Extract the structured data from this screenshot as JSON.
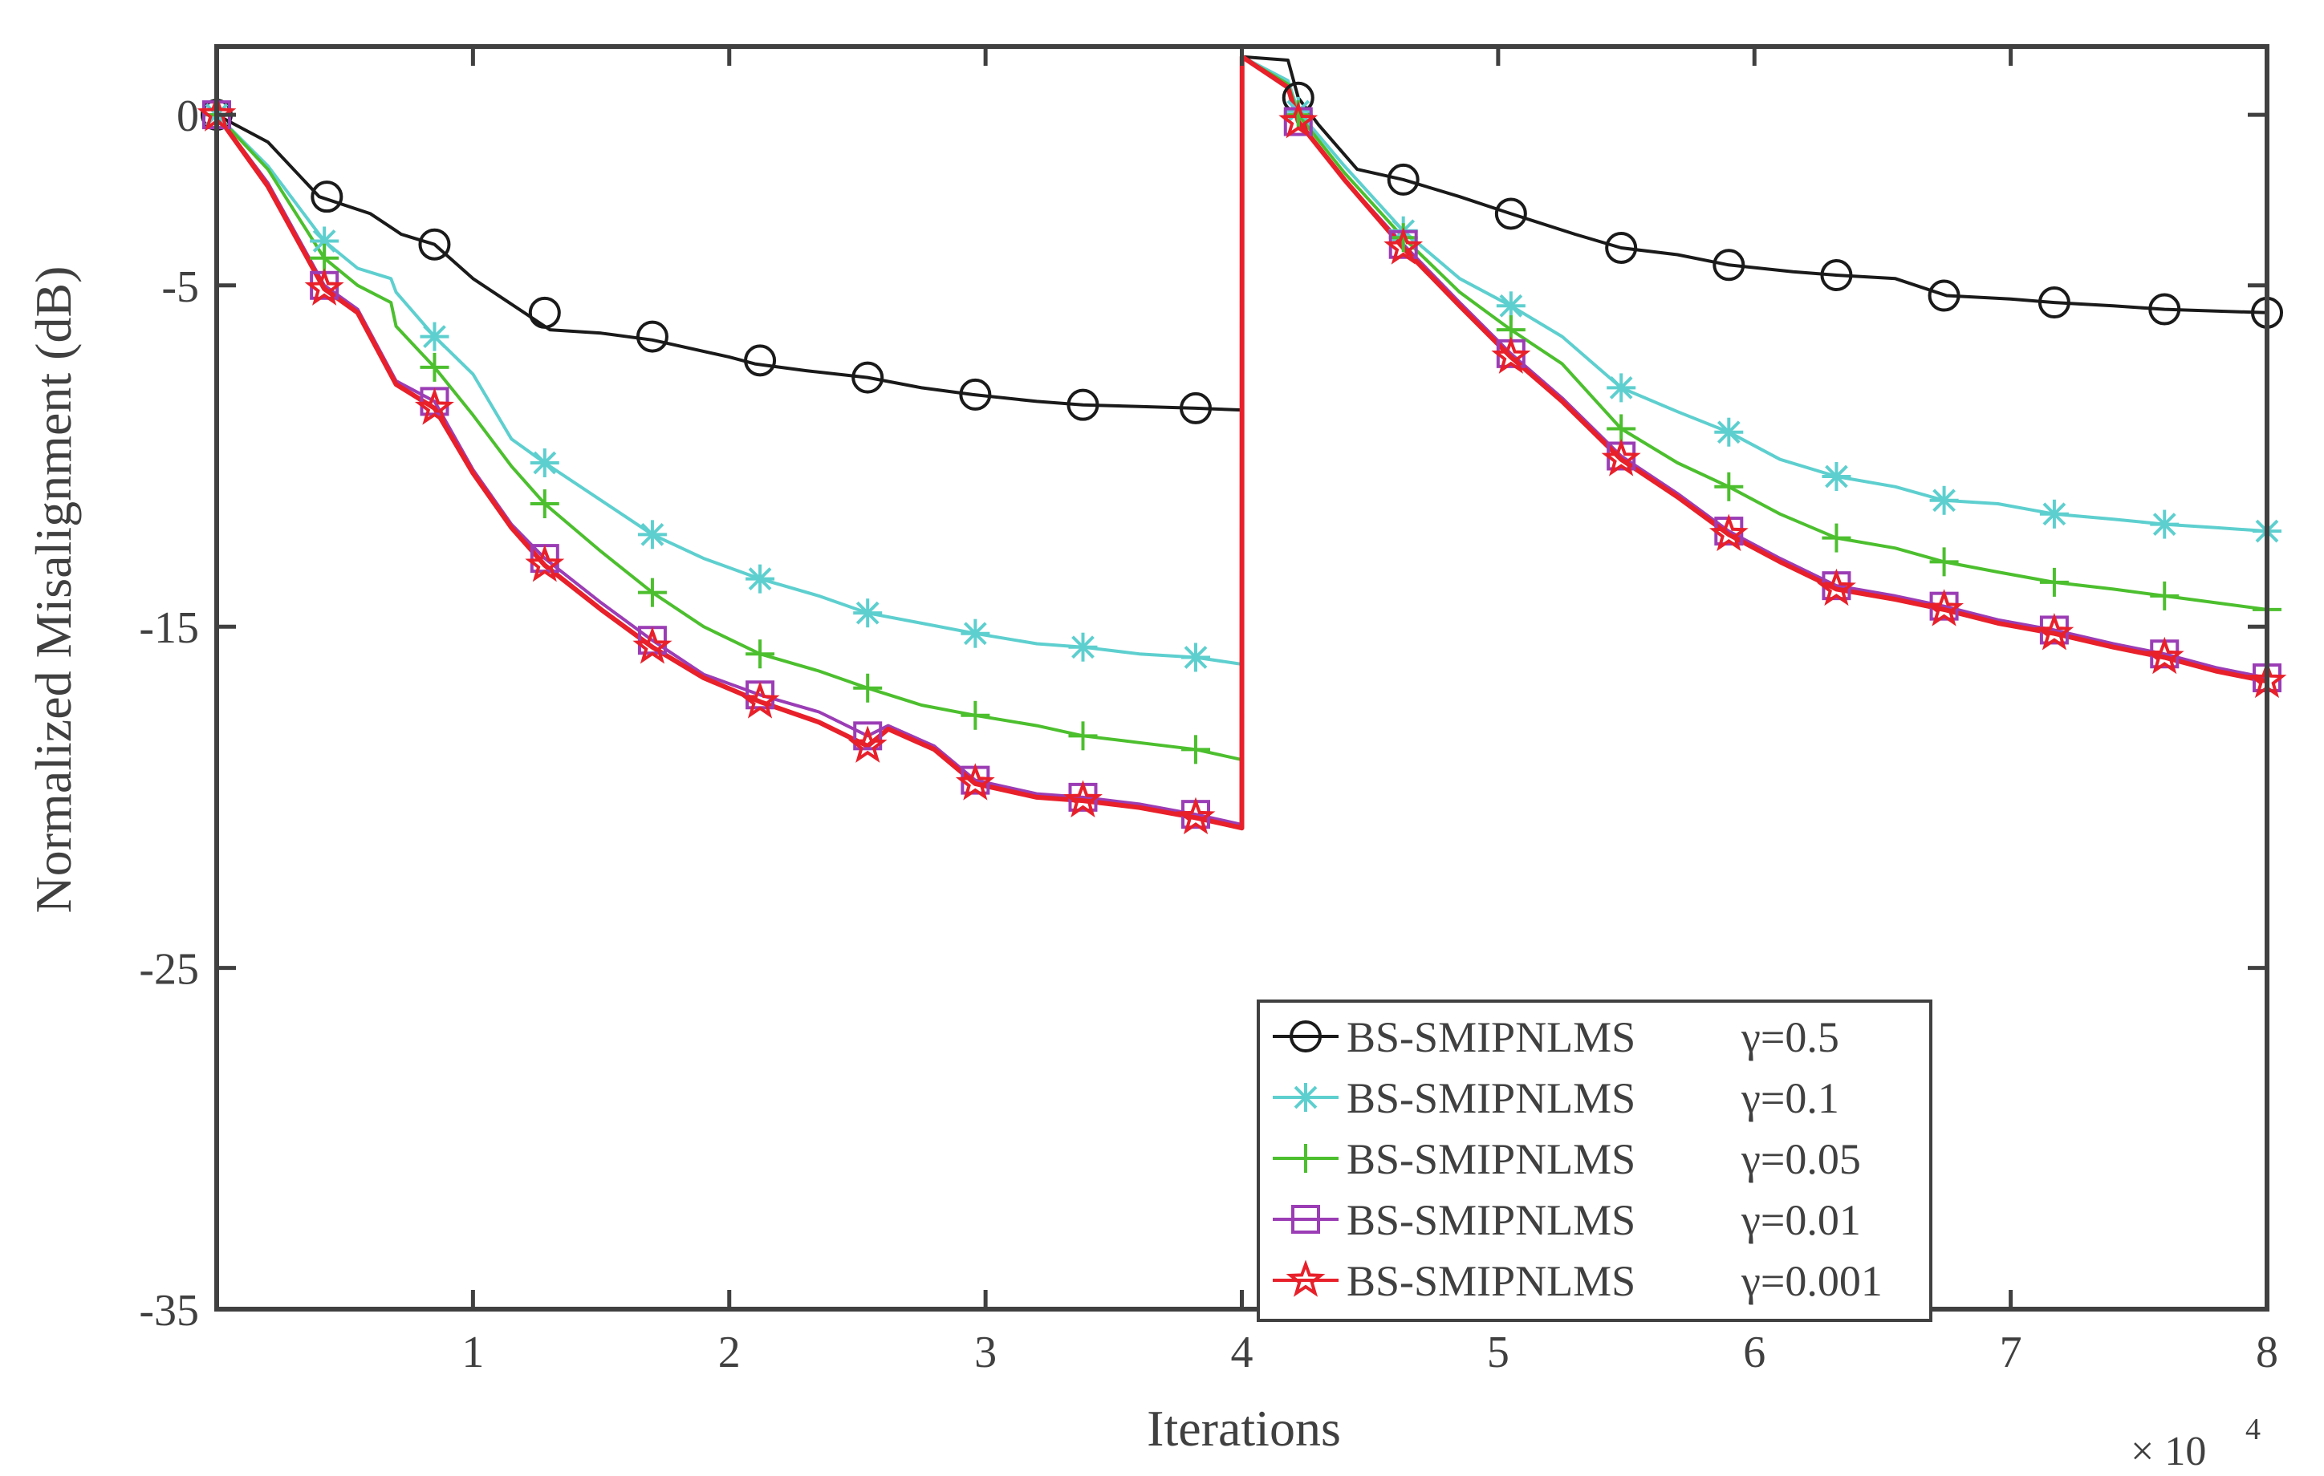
{
  "chart_data": {
    "type": "line",
    "title": "",
    "xlabel": "Iterations",
    "ylabel": "Normalized Misalignment (dB)",
    "x_multiplier": "× 10",
    "x_multiplier_exponent": "4",
    "xlim": [
      0,
      8
    ],
    "ylim": [
      -35,
      2
    ],
    "xticks": [
      1,
      2,
      3,
      4,
      5,
      6,
      7,
      8
    ],
    "xtick_labels": [
      "1",
      "2",
      "3",
      "4",
      "5",
      "6",
      "7",
      "8"
    ],
    "yticks": [
      0,
      -5,
      -15,
      -25,
      -35
    ],
    "ytick_labels": [
      "0",
      "-5",
      "-15",
      "-25",
      "-35"
    ],
    "legend_position": "bottom-right",
    "series": [
      {
        "name": "BS-SMIPNLMS",
        "param": "γ=0.5",
        "color": "#1a1a1a",
        "marker": "circle",
        "x": [
          0,
          0.2,
          0.4,
          0.6,
          0.7,
          0.72,
          0.85,
          1.0,
          1.2,
          1.3,
          1.5,
          1.7,
          2.0,
          2.1,
          2.3,
          2.54,
          2.75,
          2.95,
          3.2,
          3.38,
          3.6,
          3.82,
          4.0,
          4.001,
          4.18,
          4.22,
          4.3,
          4.45,
          4.63,
          4.85,
          5.05,
          5.3,
          5.48,
          5.7,
          5.9,
          6.15,
          6.32,
          6.55,
          6.75,
          7.0,
          7.17,
          7.4,
          7.6,
          7.8,
          8.0
        ],
        "y": [
          0,
          -0.8,
          -2.4,
          -2.9,
          -3.4,
          -3.5,
          -3.8,
          -4.8,
          -5.8,
          -6.3,
          -6.4,
          -6.6,
          -7.1,
          -7.3,
          -7.5,
          -7.7,
          -8.0,
          -8.2,
          -8.4,
          -8.5,
          -8.55,
          -8.6,
          -8.65,
          1.7,
          1.6,
          0.5,
          -0.3,
          -1.6,
          -1.9,
          -2.4,
          -2.9,
          -3.5,
          -3.9,
          -4.1,
          -4.4,
          -4.6,
          -4.7,
          -4.8,
          -5.3,
          -5.4,
          -5.5,
          -5.6,
          -5.7,
          -5.75,
          -5.8
        ],
        "marker_x": [
          0,
          0.43,
          0.85,
          1.28,
          1.7,
          2.12,
          2.54,
          2.96,
          3.38,
          3.82,
          4.22,
          4.63,
          5.05,
          5.48,
          5.9,
          6.32,
          6.74,
          7.17,
          7.6,
          8.0
        ],
        "marker_y": [
          0,
          -2.4,
          -3.8,
          -5.8,
          -6.5,
          -7.2,
          -7.7,
          -8.2,
          -8.5,
          -8.6,
          0.5,
          -1.9,
          -2.9,
          -3.9,
          -4.4,
          -4.7,
          -5.3,
          -5.5,
          -5.7,
          -5.8
        ]
      },
      {
        "name": "BS-SMIPNLMS",
        "param": "γ=0.1",
        "color": "#5ecfcf",
        "marker": "asterisk",
        "x": [
          0,
          0.2,
          0.42,
          0.55,
          0.68,
          0.7,
          0.85,
          1.0,
          1.15,
          1.28,
          1.5,
          1.7,
          1.9,
          2.12,
          2.35,
          2.54,
          2.75,
          2.96,
          3.2,
          3.38,
          3.6,
          3.82,
          4.0,
          4.001,
          4.18,
          4.22,
          4.4,
          4.63,
          4.85,
          5.05,
          5.25,
          5.48,
          5.7,
          5.9,
          6.1,
          6.32,
          6.55,
          6.74,
          6.95,
          7.17,
          7.4,
          7.6,
          7.8,
          8.0
        ],
        "y": [
          0,
          -1.5,
          -3.7,
          -4.5,
          -4.8,
          -5.2,
          -6.5,
          -7.6,
          -9.5,
          -10.2,
          -11.3,
          -12.3,
          -13.0,
          -13.6,
          -14.1,
          -14.6,
          -14.9,
          -15.2,
          -15.5,
          -15.6,
          -15.8,
          -15.9,
          -16.1,
          1.7,
          1.0,
          0.1,
          -1.5,
          -3.4,
          -4.8,
          -5.6,
          -6.5,
          -8.0,
          -8.7,
          -9.3,
          -10.1,
          -10.6,
          -10.9,
          -11.3,
          -11.4,
          -11.7,
          -11.85,
          -12.0,
          -12.1,
          -12.2
        ],
        "marker_x": [
          0,
          0.42,
          0.85,
          1.28,
          1.7,
          2.12,
          2.54,
          2.96,
          3.38,
          3.82,
          4.22,
          4.63,
          5.05,
          5.48,
          5.9,
          6.32,
          6.74,
          7.17,
          7.6,
          8.0
        ],
        "marker_y": [
          0,
          -3.7,
          -6.5,
          -10.2,
          -12.3,
          -13.6,
          -14.6,
          -15.2,
          -15.6,
          -15.9,
          0.1,
          -3.4,
          -5.6,
          -8.0,
          -9.3,
          -10.6,
          -11.3,
          -11.7,
          -12.0,
          -12.2
        ]
      },
      {
        "name": "BS-SMIPNLMS",
        "param": "γ=0.05",
        "color": "#4cbf2e",
        "marker": "plus",
        "x": [
          0,
          0.2,
          0.42,
          0.55,
          0.68,
          0.7,
          0.85,
          1.0,
          1.15,
          1.28,
          1.5,
          1.7,
          1.9,
          2.12,
          2.35,
          2.54,
          2.75,
          2.96,
          3.2,
          3.38,
          3.6,
          3.82,
          4.0,
          4.001,
          4.18,
          4.22,
          4.4,
          4.63,
          4.85,
          5.05,
          5.25,
          5.48,
          5.7,
          5.9,
          6.1,
          6.32,
          6.55,
          6.74,
          6.95,
          7.17,
          7.4,
          7.6,
          7.8,
          8.0
        ],
        "y": [
          0,
          -1.6,
          -4.2,
          -5.0,
          -5.5,
          -6.2,
          -7.4,
          -8.8,
          -10.3,
          -11.4,
          -12.8,
          -14.0,
          -15.0,
          -15.8,
          -16.3,
          -16.8,
          -17.3,
          -17.6,
          -17.9,
          -18.2,
          -18.4,
          -18.6,
          -18.9,
          1.7,
          0.9,
          0.0,
          -1.7,
          -3.6,
          -5.2,
          -6.3,
          -7.3,
          -9.2,
          -10.2,
          -10.9,
          -11.7,
          -12.4,
          -12.7,
          -13.1,
          -13.4,
          -13.7,
          -13.9,
          -14.1,
          -14.3,
          -14.5
        ],
        "marker_x": [
          0,
          0.42,
          0.85,
          1.28,
          1.7,
          2.12,
          2.54,
          2.96,
          3.38,
          3.82,
          4.22,
          4.63,
          5.05,
          5.48,
          5.9,
          6.32,
          6.74,
          7.17,
          7.6,
          8.0
        ],
        "marker_y": [
          0,
          -4.2,
          -7.4,
          -11.4,
          -14.0,
          -15.8,
          -16.8,
          -17.6,
          -18.2,
          -18.6,
          0.0,
          -3.6,
          -6.3,
          -9.2,
          -10.9,
          -12.4,
          -13.1,
          -13.7,
          -14.1,
          -14.5
        ]
      },
      {
        "name": "BS-SMIPNLMS",
        "param": "γ=0.01",
        "color": "#9b3db5",
        "marker": "square",
        "x": [
          0,
          0.2,
          0.42,
          0.55,
          0.7,
          0.85,
          1.0,
          1.15,
          1.28,
          1.5,
          1.7,
          1.9,
          2.12,
          2.35,
          2.54,
          2.62,
          2.8,
          2.96,
          3.2,
          3.38,
          3.6,
          3.82,
          4.0,
          4.001,
          4.18,
          4.22,
          4.4,
          4.63,
          4.85,
          5.05,
          5.25,
          5.48,
          5.7,
          5.9,
          6.1,
          6.32,
          6.55,
          6.74,
          6.95,
          7.17,
          7.4,
          7.6,
          7.8,
          8.0
        ],
        "y": [
          0,
          -2.0,
          -5.0,
          -5.7,
          -7.8,
          -8.4,
          -10.4,
          -12.0,
          -13.0,
          -14.3,
          -15.4,
          -16.4,
          -17.0,
          -17.5,
          -18.2,
          -17.9,
          -18.5,
          -19.5,
          -19.9,
          -20.0,
          -20.2,
          -20.5,
          -20.8,
          1.7,
          0.8,
          -0.2,
          -1.9,
          -3.8,
          -5.5,
          -7.0,
          -8.3,
          -10.0,
          -11.1,
          -12.2,
          -13.0,
          -13.8,
          -14.1,
          -14.4,
          -14.8,
          -15.1,
          -15.5,
          -15.8,
          -16.2,
          -16.5
        ],
        "marker_x": [
          0,
          0.42,
          0.85,
          1.28,
          1.7,
          2.12,
          2.54,
          2.96,
          3.38,
          3.82,
          4.22,
          4.63,
          5.05,
          5.48,
          5.9,
          6.32,
          6.74,
          7.17,
          7.6,
          8.0
        ],
        "marker_y": [
          0,
          -5.0,
          -8.4,
          -13.0,
          -15.4,
          -17.0,
          -18.2,
          -19.5,
          -20.0,
          -20.5,
          -0.2,
          -3.8,
          -7.0,
          -10.0,
          -12.2,
          -13.8,
          -14.4,
          -15.1,
          -15.8,
          -16.5
        ]
      },
      {
        "name": "BS-SMIPNLMS",
        "param": "γ=0.001",
        "color": "#e8202a",
        "marker": "star",
        "x": [
          0,
          0.2,
          0.42,
          0.55,
          0.7,
          0.85,
          1.0,
          1.15,
          1.28,
          1.5,
          1.7,
          1.9,
          2.12,
          2.35,
          2.54,
          2.62,
          2.8,
          2.96,
          3.2,
          3.38,
          3.6,
          3.82,
          4.0,
          4.001,
          4.18,
          4.22,
          4.4,
          4.63,
          4.85,
          5.05,
          5.25,
          5.48,
          5.7,
          5.9,
          6.1,
          6.32,
          6.55,
          6.74,
          6.95,
          7.17,
          7.4,
          7.6,
          7.8,
          8.0
        ],
        "y": [
          0,
          -2.1,
          -5.1,
          -5.8,
          -7.9,
          -8.6,
          -10.5,
          -12.1,
          -13.2,
          -14.5,
          -15.6,
          -16.5,
          -17.2,
          -17.8,
          -18.5,
          -18.0,
          -18.6,
          -19.6,
          -20.0,
          -20.1,
          -20.3,
          -20.6,
          -20.9,
          1.7,
          0.8,
          -0.2,
          -1.9,
          -3.9,
          -5.6,
          -7.1,
          -8.4,
          -10.1,
          -11.2,
          -12.3,
          -13.1,
          -13.9,
          -14.2,
          -14.5,
          -14.9,
          -15.2,
          -15.6,
          -15.9,
          -16.3,
          -16.6
        ],
        "marker_x": [
          0,
          0.42,
          0.85,
          1.28,
          1.7,
          2.12,
          2.54,
          2.96,
          3.38,
          3.82,
          4.22,
          4.63,
          5.05,
          5.48,
          5.9,
          6.32,
          6.74,
          7.17,
          7.6,
          8.0
        ],
        "marker_y": [
          0,
          -5.1,
          -8.6,
          -13.2,
          -15.6,
          -17.2,
          -18.5,
          -19.6,
          -20.1,
          -20.6,
          -0.2,
          -3.9,
          -7.1,
          -10.1,
          -12.3,
          -13.9,
          -14.5,
          -15.2,
          -15.9,
          -16.6
        ]
      }
    ]
  }
}
